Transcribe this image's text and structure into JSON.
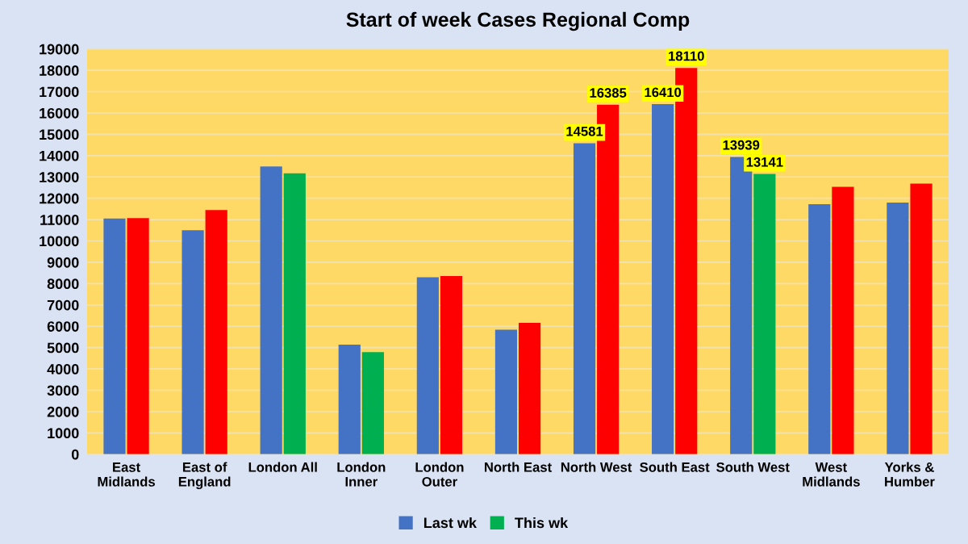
{
  "chart_data": {
    "type": "bar",
    "title": "Start of week Cases Regional Comp",
    "categories": [
      "East\nMidlands",
      "East of\nEngland",
      "London All",
      "London\nInner",
      "London\nOuter",
      "North East",
      "North West",
      "South East",
      "South West",
      "West\nMidlands",
      "Yorks &\nHumber"
    ],
    "series": [
      {
        "name": "Last wk",
        "color": "#4472c4",
        "values": [
          11050,
          10500,
          13490,
          5140,
          8300,
          5840,
          14581,
          16410,
          13939,
          11720,
          11800
        ],
        "value_labels": [
          null,
          null,
          null,
          null,
          null,
          null,
          "14581",
          "16410",
          "13939",
          null,
          null
        ]
      },
      {
        "name": "This wk",
        "color": "#00b050",
        "colors": [
          "#ff0000",
          "#ff0000",
          "#00b050",
          "#00b050",
          "#ff0000",
          "#ff0000",
          "#ff0000",
          "#ff0000",
          "#00b050",
          "#ff0000",
          "#ff0000"
        ],
        "values": [
          11070,
          11450,
          13170,
          4790,
          8350,
          6160,
          16385,
          18110,
          13141,
          12540,
          12690
        ],
        "value_labels": [
          null,
          null,
          null,
          null,
          null,
          null,
          "16385",
          "18110",
          "13141",
          null,
          null
        ]
      }
    ],
    "ylim": [
      0,
      19000
    ],
    "yticks": [
      0,
      1000,
      2000,
      3000,
      4000,
      5000,
      6000,
      7000,
      8000,
      9000,
      10000,
      11000,
      12000,
      13000,
      14000,
      15000,
      16000,
      17000,
      18000,
      19000
    ],
    "grid": "y",
    "legend": "bottom"
  }
}
